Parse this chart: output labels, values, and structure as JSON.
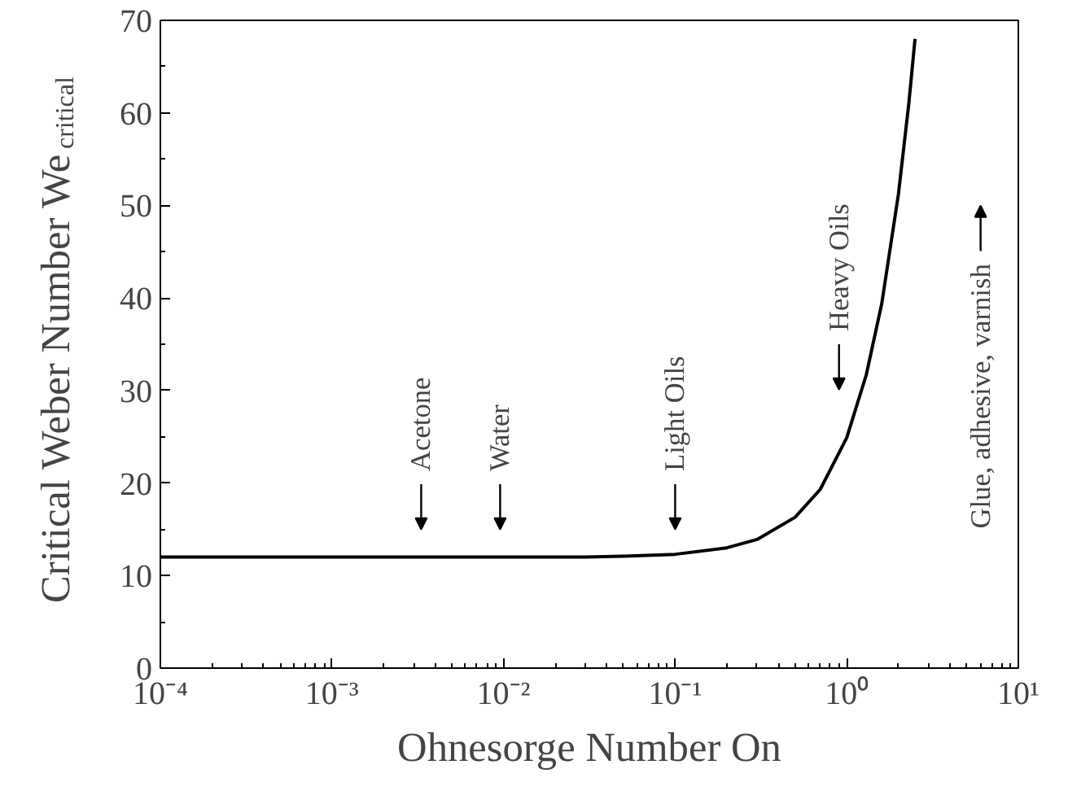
{
  "chart_data": {
    "type": "line",
    "xlabel": "Ohnesorge Number On",
    "ylabel": "Critical Weber Number We$_{critical}$",
    "log": "x",
    "grid": false,
    "marker": "none",
    "line_style": "solid",
    "xlim": [
      0.0001,
      10
    ],
    "ylim": [
      0,
      70
    ],
    "xticks": [
      {
        "value": 0.0001,
        "label": "10⁻⁴"
      },
      {
        "value": 0.001,
        "label": "10⁻³"
      },
      {
        "value": 0.01,
        "label": "10⁻²"
      },
      {
        "value": 0.1,
        "label": "10⁻¹"
      },
      {
        "value": 1,
        "label": "10⁰"
      },
      {
        "value": 10,
        "label": "10¹"
      }
    ],
    "yticks": [
      0,
      10,
      20,
      30,
      40,
      50,
      60,
      70
    ],
    "series": [
      {
        "color": "#000000",
        "x": [
          0.0001,
          0.001,
          0.01,
          0.03,
          0.05,
          0.1,
          0.2,
          0.3,
          0.5,
          0.7,
          1,
          1.3,
          1.6,
          2,
          2.3,
          2.5
        ],
        "values": [
          12.0,
          12.0,
          12.0,
          12.0,
          12.1,
          12.3,
          13.0,
          13.9,
          16.3,
          19.3,
          24.9,
          31.7,
          39.4,
          51.2,
          61.0,
          68.0
        ]
      }
    ],
    "annotations": [
      "Acetone",
      "Water",
      "Light Oils",
      "Heavy Oils",
      "Glue, adhesive, varnish"
    ]
  }
}
